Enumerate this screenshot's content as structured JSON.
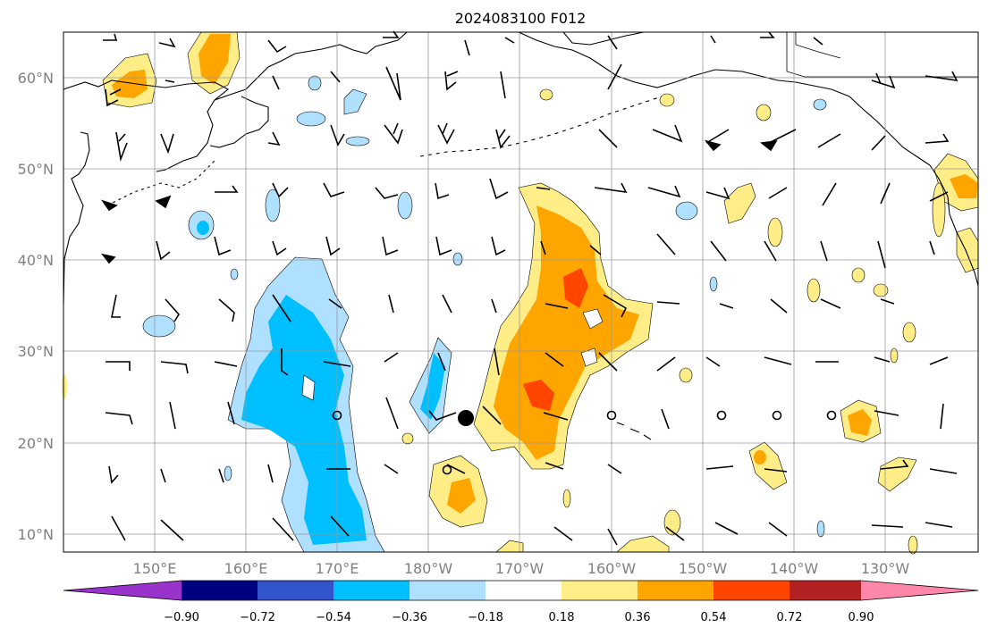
{
  "title": "2024083100 F012",
  "map": {
    "lat_labels": [
      "60°N",
      "50°N",
      "40°N",
      "30°N",
      "20°N",
      "10°N"
    ],
    "lon_labels": [
      "150°E",
      "160°E",
      "170°E",
      "180°W",
      "170°W",
      "160°W",
      "150°W",
      "140°W",
      "130°W"
    ]
  },
  "colorbar": {
    "ticks": [
      "−0.90",
      "−0.72",
      "−0.54",
      "−0.36",
      "−0.18",
      "0.18",
      "0.36",
      "0.54",
      "0.72",
      "0.90"
    ],
    "colors": [
      "#9933cc",
      "#000080",
      "#3355cc",
      "#00bfff",
      "#b0e0ff",
      "#ffffff",
      "#ffee88",
      "#ffa500",
      "#ff4500",
      "#b22222",
      "#ff88aa"
    ]
  },
  "field_colors": {
    "neg_1": "#b0e0ff",
    "neg_2": "#00bfff",
    "pos_1": "#ffee88",
    "pos_2": "#ffa500",
    "pos_3": "#ff4500"
  }
}
